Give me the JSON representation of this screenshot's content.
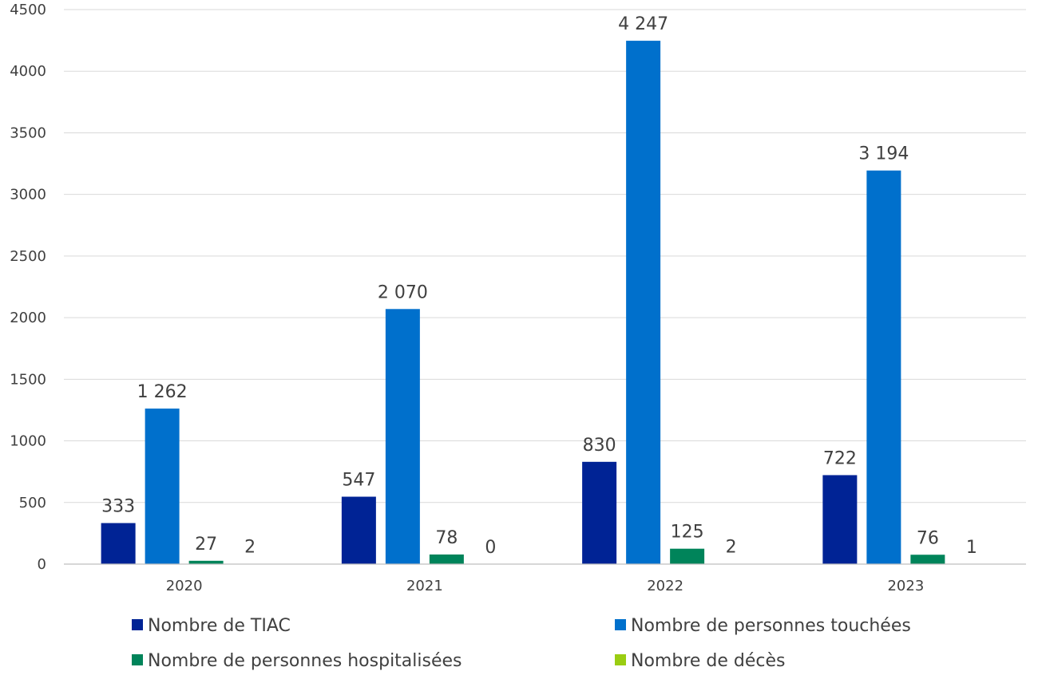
{
  "chart_data": {
    "type": "bar",
    "categories": [
      "2020",
      "2021",
      "2022",
      "2023"
    ],
    "series": [
      {
        "name": "Nombre de TIAC",
        "color": "#002395",
        "values": [
          333,
          547,
          830,
          722
        ],
        "labels": [
          "333",
          "547",
          "830",
          "722"
        ]
      },
      {
        "name": "Nombre de personnes touchées",
        "color": "#0070CC",
        "values": [
          1262,
          2070,
          4247,
          3194
        ],
        "labels": [
          "1 262",
          "2 070",
          "4 247",
          "3 194"
        ]
      },
      {
        "name": "Nombre de personnes hospitalisées",
        "color": "#00845A",
        "values": [
          27,
          78,
          125,
          76
        ],
        "labels": [
          "27",
          "78",
          "125",
          "76"
        ]
      },
      {
        "name": "Nombre de décès",
        "color": "#9ACD12",
        "values": [
          2,
          0,
          2,
          1
        ],
        "labels": [
          "2",
          "0",
          "2",
          "1"
        ]
      }
    ],
    "ylim": [
      0,
      4500
    ],
    "yticks": [
      0,
      500,
      1000,
      1500,
      2000,
      2500,
      3000,
      3500,
      4000,
      4500
    ],
    "grid": true,
    "legend_position": "bottom",
    "title": "",
    "xlabel": "",
    "ylabel": ""
  }
}
